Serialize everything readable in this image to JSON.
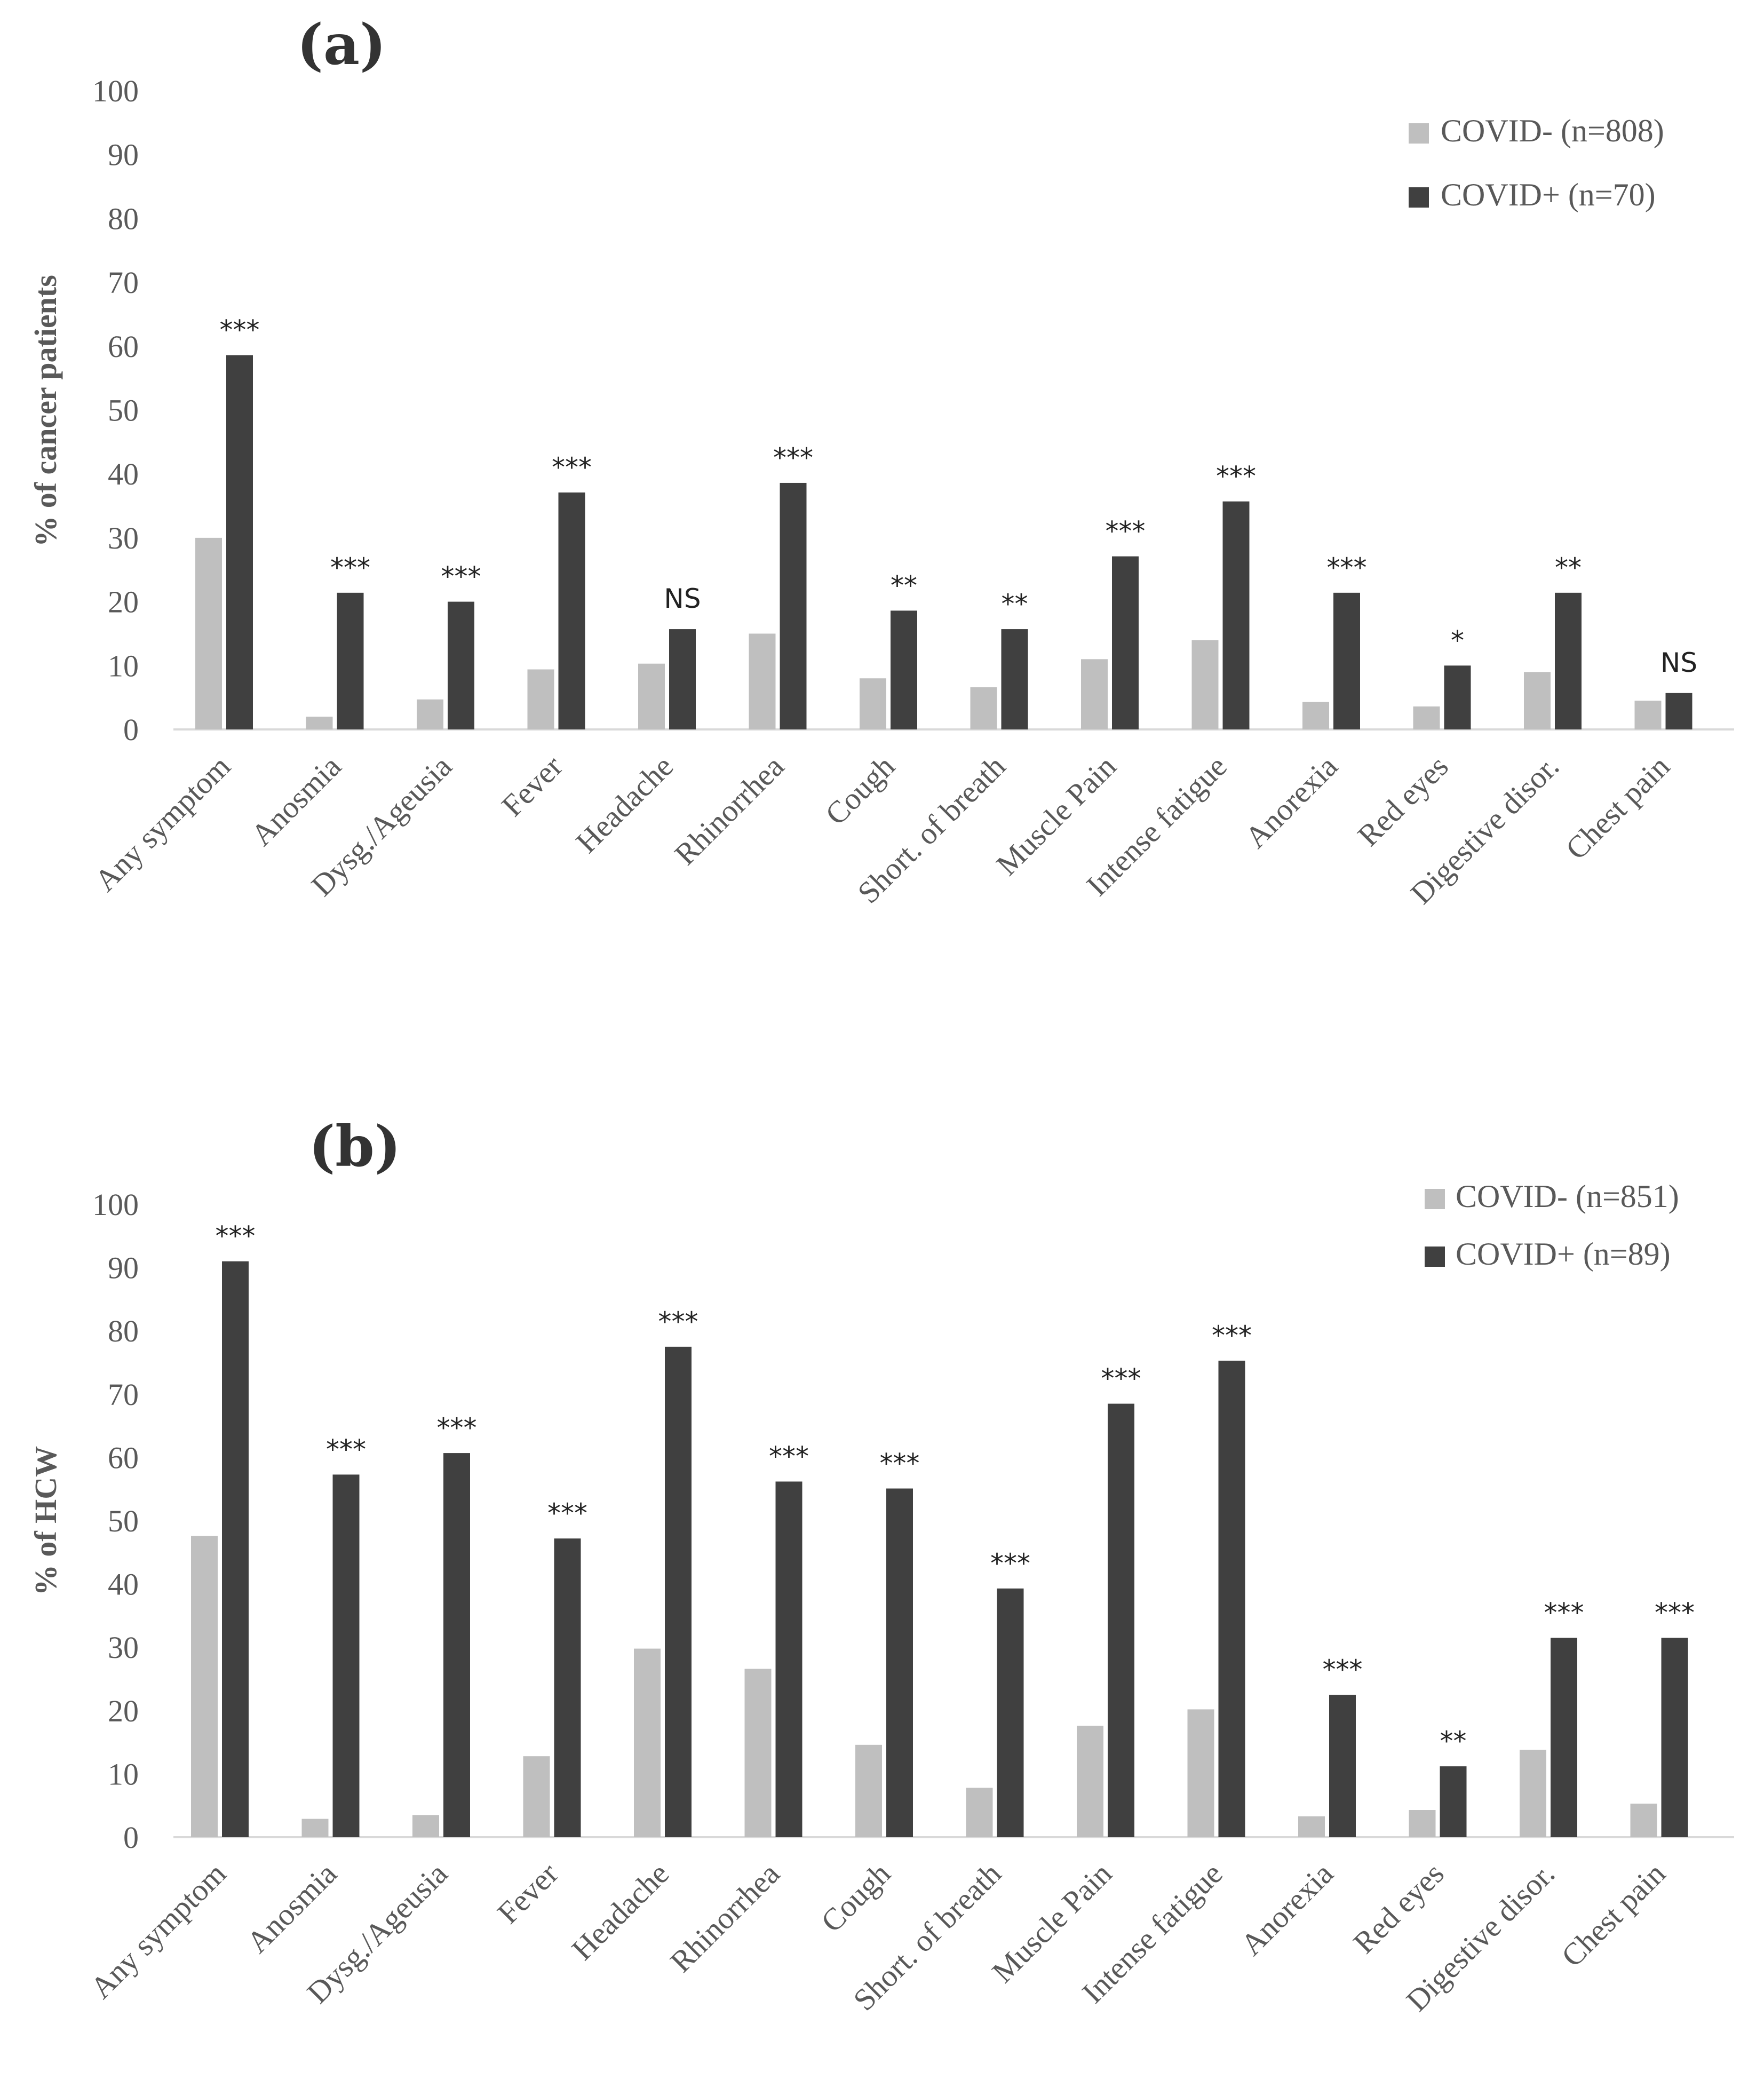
{
  "chart_data": [
    {
      "type": "bar",
      "panel_label": "(a)",
      "ylabel": "% of cancer patients",
      "xlabel": "",
      "ylim": [
        0,
        100
      ],
      "yticks": [
        "0",
        "10",
        "20",
        "30",
        "40",
        "50",
        "60",
        "70",
        "80",
        "90",
        "100"
      ],
      "categories": [
        "Any symptom",
        "Anosmia",
        "Dysg./Ageusia",
        "Fever",
        "Headache",
        "Rhinorrhea",
        "Cough",
        "Short. of breath",
        "Muscle Pain",
        "Intense fatigue",
        "Anorexia",
        "Red eyes",
        "Digestive disor.",
        "Chest pain"
      ],
      "series": [
        {
          "name": "COVID- (n=808)",
          "color": "#bfbfbf",
          "values": [
            30,
            2,
            4.7,
            9.4,
            10.3,
            15,
            8,
            6.6,
            11,
            14,
            4.3,
            3.6,
            9,
            4.5
          ]
        },
        {
          "name": "COVID+ (n=70)",
          "color": "#404040",
          "values": [
            58.6,
            21.4,
            20,
            37.1,
            15.7,
            38.6,
            18.6,
            15.7,
            27.1,
            35.7,
            21.4,
            10,
            21.4,
            5.7
          ]
        }
      ],
      "significance": [
        "***",
        "***",
        "***",
        "***",
        "NS",
        "***",
        "**",
        "**",
        "***",
        "***",
        "***",
        "*",
        "**",
        "NS"
      ],
      "legend": "top-right"
    },
    {
      "type": "bar",
      "panel_label": "(b)",
      "ylabel": "% of HCW",
      "xlabel": "",
      "ylim": [
        0,
        100
      ],
      "yticks": [
        "0",
        "10",
        "20",
        "30",
        "40",
        "50",
        "60",
        "70",
        "80",
        "90",
        "100"
      ],
      "categories": [
        "Any symptom",
        "Anosmia",
        "Dysg./Ageusia",
        "Fever",
        "Headache",
        "Rhinorrhea",
        "Cough",
        "Short. of breath",
        "Muscle Pain",
        "Intense fatigue",
        "Anorexia",
        "Red eyes",
        "Digestive disor.",
        "Chest pain"
      ],
      "series": [
        {
          "name": "COVID- (n=851)",
          "color": "#bfbfbf",
          "values": [
            47.6,
            2.9,
            3.5,
            12.8,
            29.8,
            26.6,
            14.6,
            7.8,
            17.6,
            20.2,
            3.3,
            4.3,
            13.8,
            5.3
          ]
        },
        {
          "name": "COVID+ (n=89)",
          "color": "#404040",
          "values": [
            91,
            57.3,
            60.7,
            47.2,
            77.5,
            56.2,
            55.1,
            39.3,
            68.5,
            75.3,
            22.5,
            11.2,
            31.5,
            31.5
          ]
        }
      ],
      "significance": [
        "***",
        "***",
        "***",
        "***",
        "***",
        "***",
        "***",
        "***",
        "***",
        "***",
        "***",
        "**",
        "***",
        "***"
      ],
      "legend": "top-right"
    }
  ]
}
